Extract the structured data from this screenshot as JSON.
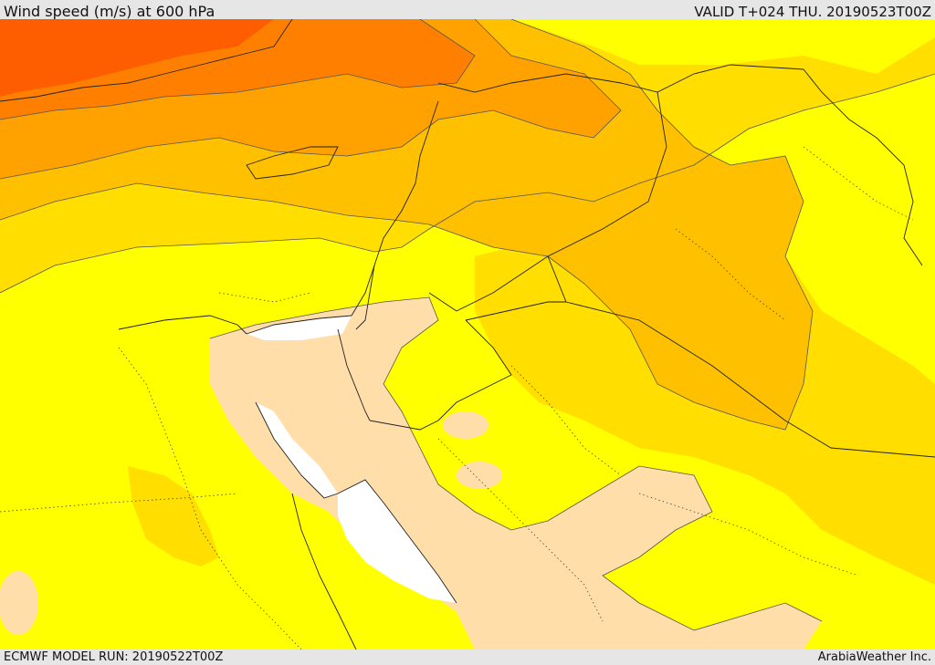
{
  "header": {
    "title": "Wind speed (m/s) at 600 hPa",
    "valid_time": "VALID T+024 THU. 20190523T00Z"
  },
  "footer": {
    "model_run": "ECMWF MODEL RUN: 20190522T00Z",
    "credit": "ArabiaWeather Inc."
  },
  "map": {
    "variable": "wind speed",
    "units": "m/s",
    "pressure_level_hpa": 600,
    "colors": {
      "below_band": "#ffffff",
      "band_1": "#ffdeaa",
      "band_2": "#ffff00",
      "band_3": "#ffde00",
      "band_4": "#ffc000",
      "band_5": "#ffa200",
      "band_6": "#ff8000",
      "band_7": "#ff5e00"
    }
  }
}
